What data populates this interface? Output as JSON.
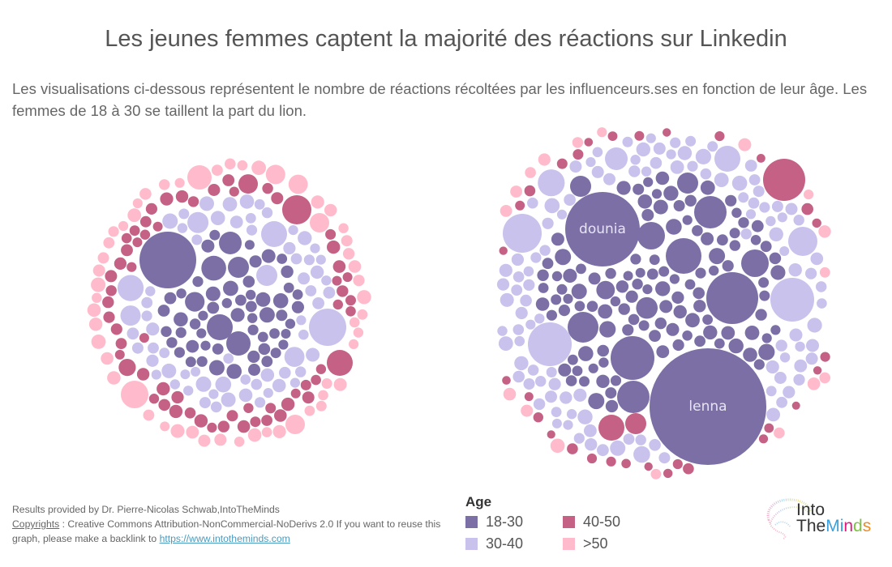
{
  "header": {
    "title": "Les jeunes femmes captent la majorité des réactions sur Linkedin",
    "subtitle": "Les visualisations ci-dessous représentent le nombre de réactions récoltées par les influenceurs.ses en fonction de leur âge. Les femmes de 18 à 30 se taillent la part du lion."
  },
  "footer": {
    "line1": "Results provided by Dr. Pierre-Nicolas Schwab,IntoTheMinds",
    "copyright_label": "Copyrights",
    "line2_rest": " : Creative Commons Attribution-NonCommercial-NoDerivs 2.0 If you want to reuse this graph, please make a backlink to ",
    "link_text": "https://www.intotheminds.com"
  },
  "legend": {
    "title": "Age",
    "items": [
      {
        "label": "18-30",
        "color": "#7b6fa6"
      },
      {
        "label": "40-50",
        "color": "#c46184"
      },
      {
        "label": "30-40",
        "color": "#c8c2ec"
      },
      {
        "label": ">50",
        "color": "#ffbbcb"
      }
    ]
  },
  "logo": {
    "line1": "Into",
    "line2_parts": [
      {
        "text": "The",
        "color": "#333333"
      },
      {
        "text": "M",
        "color": "#3aa0dc"
      },
      {
        "text": "i",
        "color": "#3aa0dc"
      },
      {
        "text": "n",
        "color": "#e0197d"
      },
      {
        "text": "d",
        "color": "#7cc242"
      },
      {
        "text": "s",
        "color": "#f08a24"
      }
    ]
  },
  "chart_data": [
    {
      "type": "packed-bubble",
      "name": "left-chart",
      "description": "Reactions per influencer, colored by age group (packed bubbles)",
      "colors": {
        "18-30": "#7b6fa6",
        "30-40": "#c8c2ec",
        "40-50": "#c46184",
        ">50": "#ffbbcb"
      },
      "named_bubbles": [],
      "prominent_bubbles": [
        {
          "age": "18-30",
          "relative_size": 1.0
        },
        {
          "age": "30-40",
          "relative_size": 0.64
        },
        {
          "age": "40-50",
          "relative_size": 0.5
        },
        {
          "age": ">50",
          "relative_size": 0.47
        }
      ],
      "approx_counts": {
        "18-30": 95,
        "30-40": 150,
        "40-50": 110,
        ">50": 120
      }
    },
    {
      "type": "packed-bubble",
      "name": "right-chart",
      "description": "Reactions per influencer, colored by age group (packed bubbles)",
      "colors": {
        "18-30": "#7b6fa6",
        "30-40": "#c8c2ec",
        "40-50": "#c46184",
        ">50": "#ffbbcb"
      },
      "named_bubbles": [
        {
          "label": "lenna",
          "age": "18-30",
          "relative_size": 1.0
        },
        {
          "label": "dounia",
          "age": "18-30",
          "relative_size": 0.64
        }
      ],
      "approx_counts": {
        "18-30": 200,
        "30-40": 110,
        "40-50": 40,
        ">50": 35
      }
    }
  ]
}
